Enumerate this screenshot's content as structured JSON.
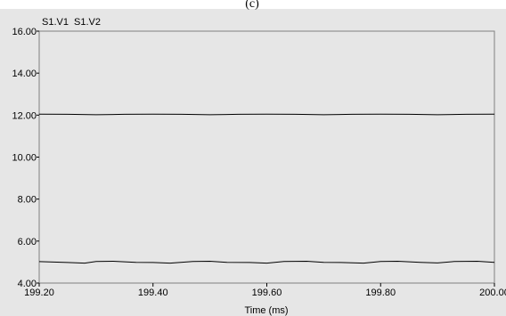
{
  "caption": "(c)",
  "chart_data": {
    "type": "line",
    "title": "",
    "xlabel": "Time (ms)",
    "ylabel": "",
    "xlim": [
      199.2,
      200.0
    ],
    "ylim": [
      4.0,
      16.0
    ],
    "x_ticks": [
      "199.20",
      "199.40",
      "199.60",
      "199.80",
      "200.00"
    ],
    "x_tick_values": [
      199.2,
      199.4,
      199.6,
      199.8,
      200.0
    ],
    "y_ticks": [
      "4.00",
      "6.00",
      "8.00",
      "10.00",
      "12.00",
      "14.00",
      "16.00"
    ],
    "y_tick_values": [
      4,
      6,
      8,
      10,
      12,
      14,
      16
    ],
    "grid": false,
    "legend_placement": "top-left",
    "legend": [
      "S1.V1",
      "S1.V2"
    ],
    "series": [
      {
        "name": "S1.V1",
        "color": "#000000",
        "x": [
          199.2,
          199.25,
          199.3,
          199.35,
          199.4,
          199.45,
          199.5,
          199.55,
          199.6,
          199.65,
          199.7,
          199.75,
          199.8,
          199.85,
          199.9,
          199.95,
          200.0
        ],
        "values": [
          12.05,
          12.04,
          12.02,
          12.04,
          12.05,
          12.04,
          12.02,
          12.04,
          12.05,
          12.04,
          12.02,
          12.04,
          12.05,
          12.04,
          12.02,
          12.04,
          12.05
        ]
      },
      {
        "name": "S1.V2",
        "color": "#000000",
        "x": [
          199.2,
          199.25,
          199.28,
          199.3,
          199.33,
          199.37,
          199.4,
          199.43,
          199.47,
          199.5,
          199.53,
          199.57,
          199.6,
          199.63,
          199.67,
          199.7,
          199.73,
          199.77,
          199.8,
          199.83,
          199.87,
          199.9,
          199.93,
          199.97,
          200.0
        ],
        "values": [
          5.02,
          4.98,
          4.95,
          5.03,
          5.04,
          4.99,
          4.98,
          4.95,
          5.03,
          5.04,
          4.99,
          4.98,
          4.95,
          5.03,
          5.04,
          4.99,
          4.98,
          4.95,
          5.03,
          5.04,
          4.99,
          4.96,
          5.03,
          5.04,
          4.99
        ]
      }
    ]
  }
}
